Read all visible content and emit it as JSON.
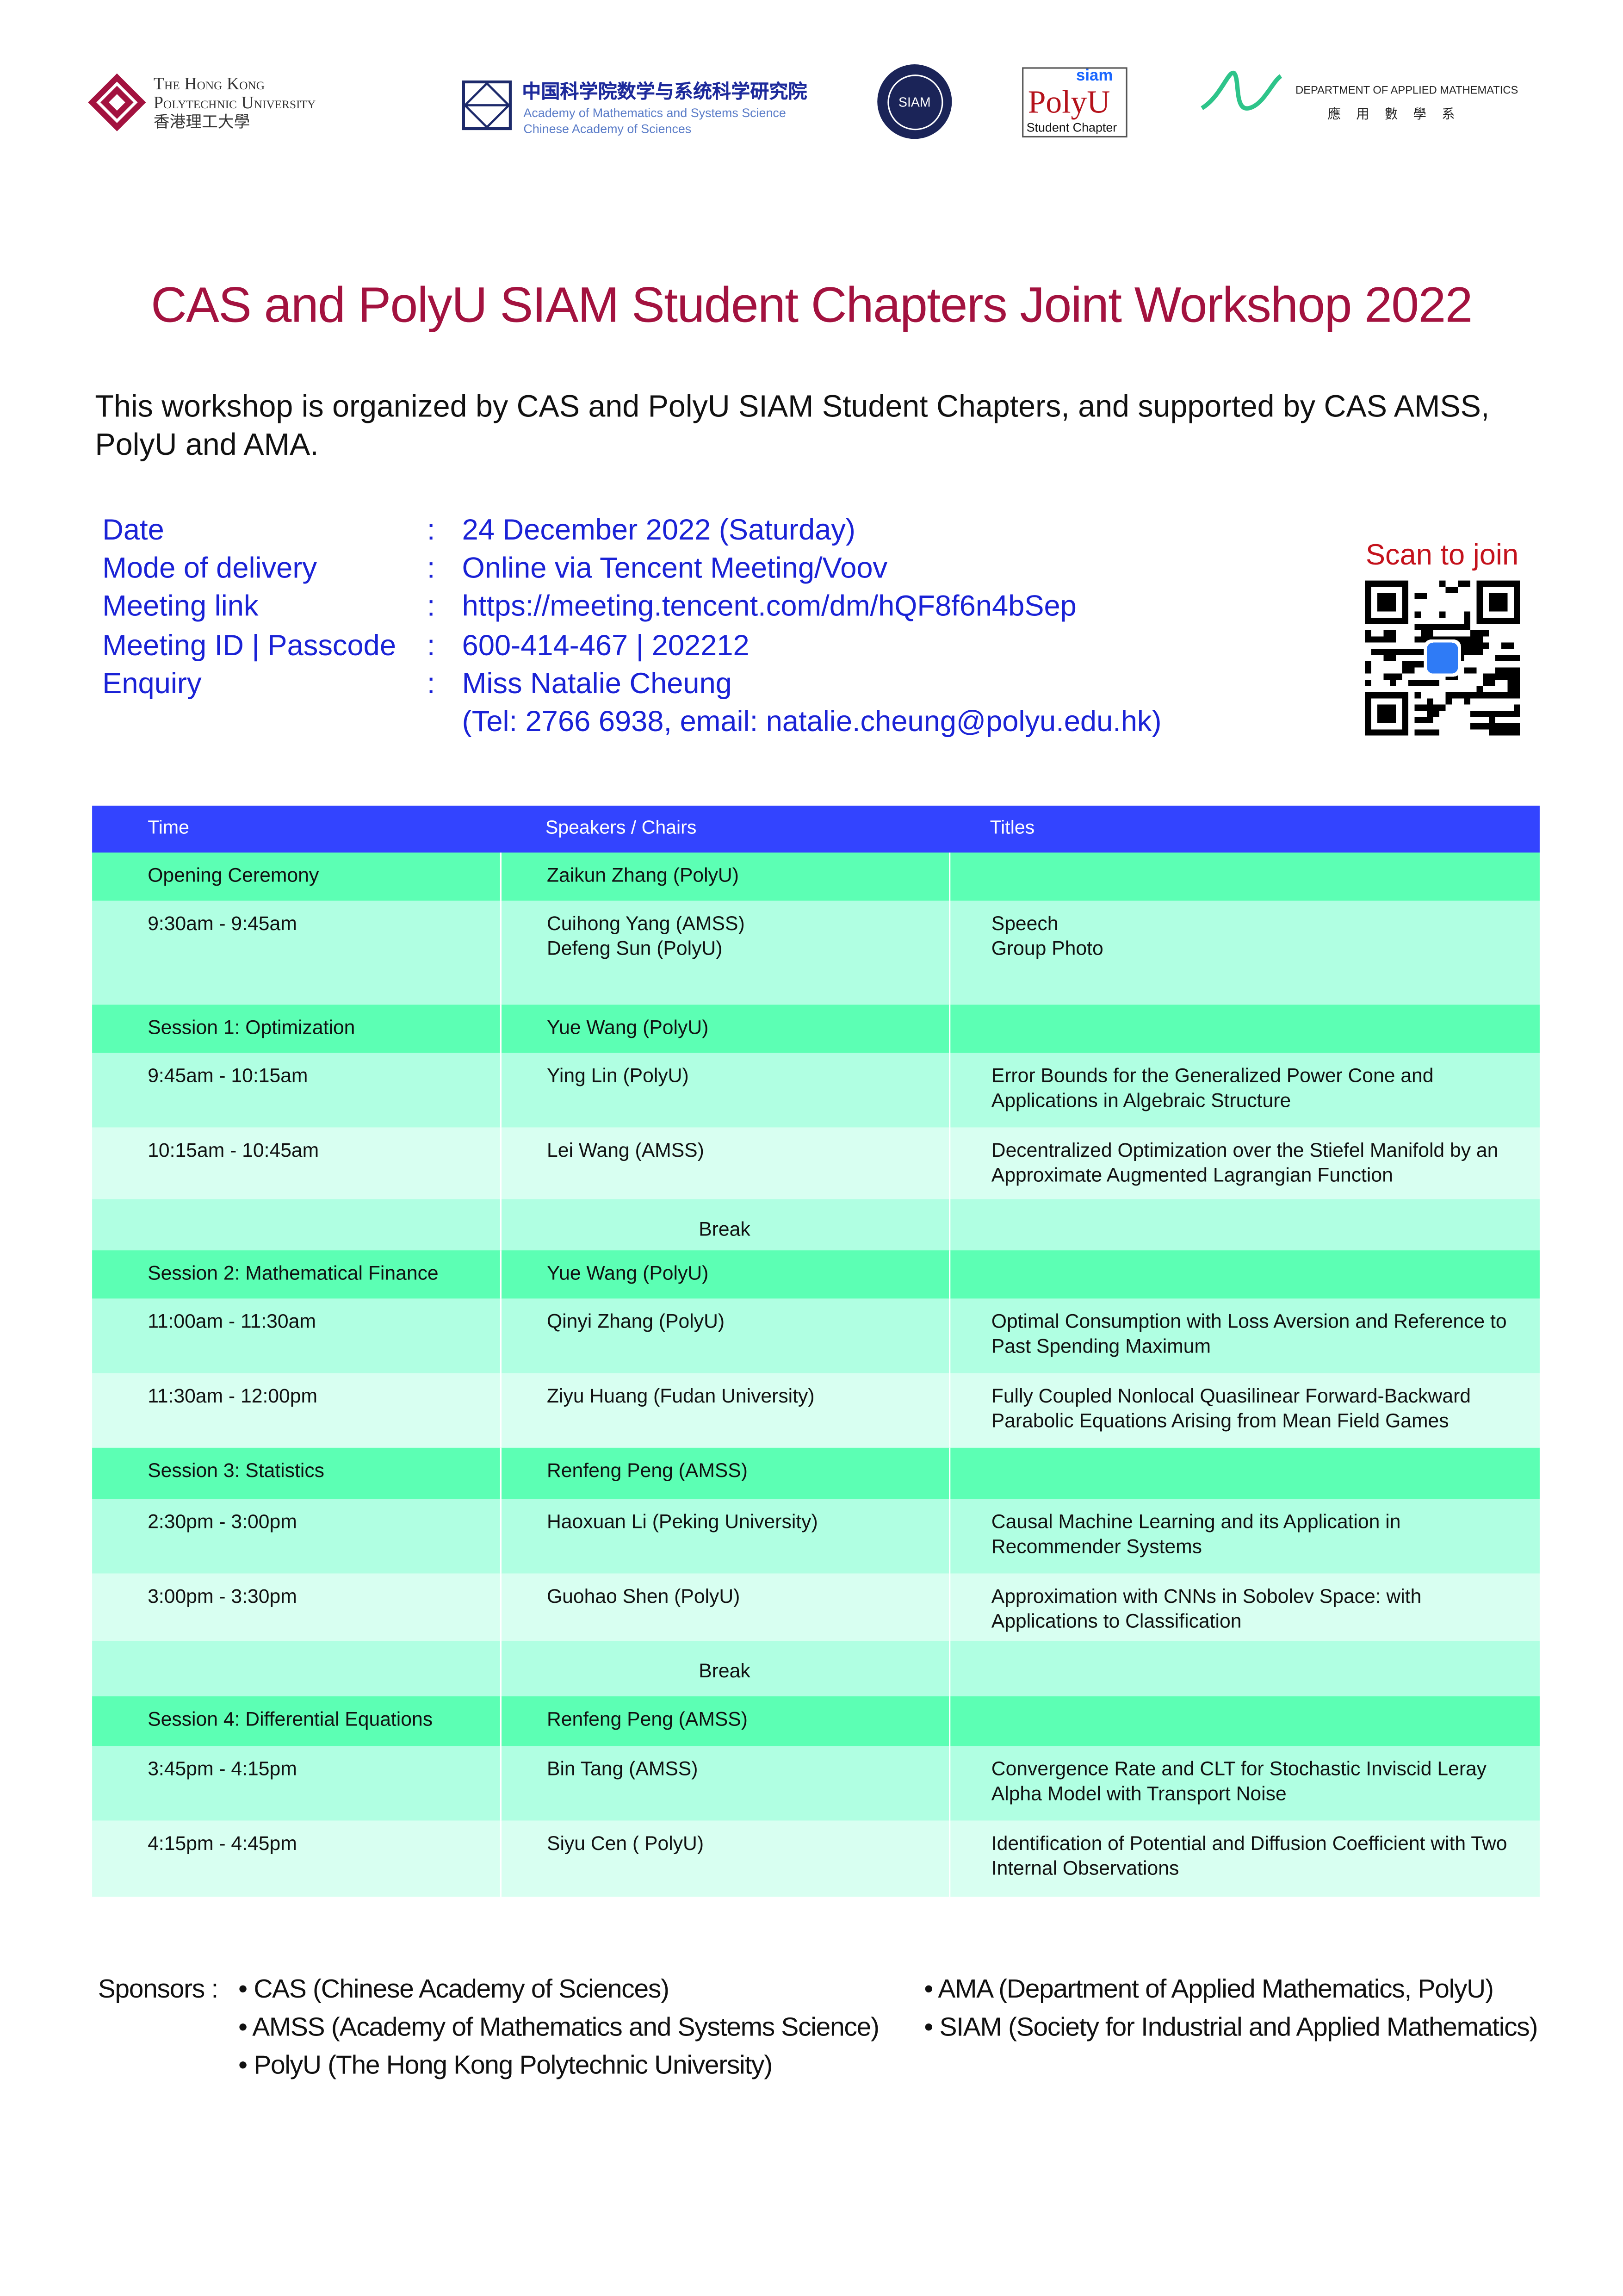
{
  "logos": {
    "polyu": {
      "line1": "The Hong Kong",
      "line2": "Polytechnic University",
      "chinese": "香港理工大學"
    },
    "amss": {
      "chinese": "中国科学院数学与系统科学研究院",
      "line1": "Academy of Mathematics and Systems Science",
      "line2": "Chinese Academy of Sciences"
    },
    "siam_seal": {
      "text": "SIAM"
    },
    "siam_polyu": {
      "top": "siam",
      "main": "PolyU",
      "bottom": "Student Chapter"
    },
    "ama": {
      "line1": "DEPARTMENT OF APPLIED MATHEMATICS",
      "chinese": "應 用 數 學 系"
    }
  },
  "title": "CAS and PolyU SIAM Student Chapters Joint Workshop 2022",
  "intro": "This workshop is organized by CAS and PolyU SIAM Student Chapters, and supported by CAS AMSS, PolyU and AMA.",
  "info": [
    {
      "label": "Date",
      "value": "24 December 2022 (Saturday)"
    },
    {
      "label": "Mode of delivery",
      "value": "Online via  Tencent Meeting/Voov"
    },
    {
      "label": "Meeting link",
      "value": "https://meeting.tencent.com/dm/hQF8f6n4bSep"
    },
    {
      "label": "Meeting ID | Passcode",
      "value": "600-414-467 | 202212"
    },
    {
      "label": "Enquiry",
      "value": "Miss Natalie Cheung"
    },
    {
      "label": "",
      "value": "(Tel: 2766 6938, email: natalie.cheung@polyu.edu.hk)"
    }
  ],
  "colon": ":",
  "scan_label": "Scan to join",
  "colors": {
    "title": "#a3123f",
    "info": "#1a22d6",
    "header": "#3344ff",
    "session": "#5cffb4",
    "light": "#b0ffe2",
    "lighter": "#d8fff1"
  },
  "table": {
    "headers": [
      "Time",
      "Speakers / Chairs",
      "Titles"
    ],
    "rows": [
      {
        "type": "session",
        "time": "Opening Ceremony",
        "speaker": "Zaikun Zhang  (PolyU)",
        "title": ""
      },
      {
        "type": "light",
        "time": "9:30am - 9:45am",
        "speaker": "Cuihong Yang (AMSS)\nDefeng Sun (PolyU)",
        "title": "Speech\nGroup Photo"
      },
      {
        "type": "session",
        "time": "Session 1:  Optimization",
        "speaker": "Yue Wang (PolyU)",
        "title": ""
      },
      {
        "type": "light",
        "time": "9:45am - 10:15am",
        "speaker": "Ying Lin (PolyU)",
        "title": "Error Bounds for the Generalized Power Cone and Applications in Algebraic Structure"
      },
      {
        "type": "lighter",
        "time": "10:15am - 10:45am",
        "speaker": "Lei Wang (AMSS)",
        "title": "Decentralized Optimization over the Stiefel Manifold by an Approximate Augmented Lagrangian Function"
      },
      {
        "type": "break",
        "label": "Break"
      },
      {
        "type": "session",
        "time": "Session 2:  Mathematical Finance",
        "speaker": "Yue Wang (PolyU)",
        "title": ""
      },
      {
        "type": "light",
        "time": "11:00am - 11:30am",
        "speaker": "Qinyi Zhang (PolyU)",
        "title": "Optimal Consumption with Loss Aversion and Reference to Past Spending Maximum"
      },
      {
        "type": "lighter",
        "time": "11:30am - 12:00pm",
        "speaker": "Ziyu Huang (Fudan University)",
        "title": "Fully Coupled Nonlocal Quasilinear Forward-Backward Parabolic Equations Arising from Mean Field Games"
      },
      {
        "type": "session",
        "time": "Session 3:  Statistics",
        "speaker": "Renfeng Peng (AMSS)",
        "title": ""
      },
      {
        "type": "light",
        "time": "2:30pm - 3:00pm",
        "speaker": "Haoxuan Li (Peking University)",
        "title": "Causal Machine Learning and its Application in Recommender Systems"
      },
      {
        "type": "lighter",
        "time": "3:00pm - 3:30pm",
        "speaker": "Guohao Shen (PolyU)",
        "title": "Approximation with CNNs in Sobolev Space: with Applications to Classification"
      },
      {
        "type": "break",
        "label": "Break"
      },
      {
        "type": "session",
        "time": "Session 4:  Differential Equations",
        "speaker": "Renfeng Peng (AMSS)",
        "title": ""
      },
      {
        "type": "light",
        "time": "3:45pm - 4:15pm",
        "speaker": "Bin Tang (AMSS)",
        "title": "Convergence Rate and CLT for Stochastic Inviscid Leray Alpha Model with Transport Noise"
      },
      {
        "type": "lighter",
        "time": "4:15pm - 4:45pm",
        "speaker": "Siyu Cen ( PolyU)",
        "title": "Identification of Potential and Diffusion Coefficient with Two Internal Observations"
      }
    ]
  },
  "sponsors": {
    "label": "Sponsors :",
    "items": [
      "• CAS (Chinese Academy of Sciences)",
      "• AMSS (Academy of Mathematics and Systems Science)",
      "• PolyU (The Hong Kong Polytechnic University)",
      "• AMA (Department of Applied Mathematics, PolyU)",
      "• SIAM (Society for Industrial and Applied Mathematics)"
    ]
  }
}
